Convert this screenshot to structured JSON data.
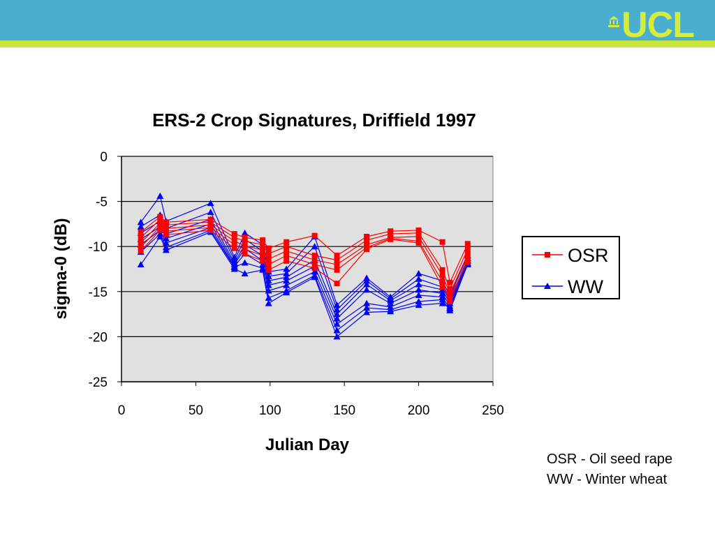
{
  "header": {
    "logo_text": "UCL",
    "colors": {
      "bar": "#4aafcf",
      "stripe": "#c8e63c",
      "logo": "#d4ec3b"
    }
  },
  "notes": [
    "OSR - Oil seed rape",
    "WW - Winter wheat"
  ],
  "chart_data": {
    "type": "line",
    "title": "ERS-2 Crop Signatures, Driffield 1997",
    "xlabel": "Julian Day",
    "ylabel": "sigma-0 (dB)",
    "xlim": [
      0,
      250
    ],
    "ylim": [
      -25,
      0
    ],
    "xticks": [
      0,
      50,
      100,
      150,
      200,
      250
    ],
    "yticks": [
      0,
      -5,
      -10,
      -15,
      -20,
      -25
    ],
    "grid": "horizontal",
    "plot_background": "#e0e0e0",
    "legend_position": "right",
    "x": [
      13,
      26,
      30,
      60,
      76,
      83,
      95,
      99,
      111,
      130,
      145,
      165,
      181,
      200,
      216,
      221,
      233
    ],
    "series": [
      {
        "name": "OSR",
        "color": "#ff0000",
        "marker": "square",
        "lines": [
          [
            -8.4,
            -6.7,
            -7.3,
            -7.0,
            -8.6,
            -9.0,
            -9.3,
            -10.2,
            -9.5,
            -8.8,
            -11.0,
            -8.9,
            -8.3,
            -8.2,
            -9.5,
            -14.0,
            -9.7
          ],
          [
            -9.0,
            -7.0,
            -7.6,
            -7.3,
            -9.0,
            -9.4,
            -9.8,
            -10.8,
            -10.0,
            -11.0,
            -11.5,
            -9.3,
            -8.6,
            -8.5,
            -12.6,
            -14.7,
            -10.3
          ],
          [
            -9.6,
            -7.4,
            -8.0,
            -7.6,
            -9.4,
            -9.9,
            -10.4,
            -11.4,
            -10.5,
            -11.5,
            -12.0,
            -9.8,
            -9.0,
            -8.9,
            -13.2,
            -15.2,
            -10.9
          ],
          [
            -10.1,
            -7.8,
            -8.3,
            -7.9,
            -9.8,
            -10.3,
            -11.0,
            -12.0,
            -11.0,
            -12.0,
            -12.6,
            -10.1,
            -9.1,
            -9.4,
            -13.9,
            -16.1,
            -11.4
          ],
          [
            -10.5,
            -8.2,
            -8.7,
            -8.2,
            -10.2,
            -10.8,
            -11.6,
            -12.6,
            -11.6,
            -12.4,
            -14.1,
            -10.3,
            -9.2,
            -9.6,
            -14.5,
            -15.6,
            -11.7
          ]
        ]
      },
      {
        "name": "WW",
        "color": "#0000ff",
        "marker": "triangle",
        "lines": [
          [
            -7.3,
            -4.4,
            -7.2,
            -5.2,
            -11.2,
            -8.5,
            -9.8,
            -12.8,
            -12.5,
            -8.9,
            -16.5,
            -13.5,
            -15.6,
            -13.0,
            -13.8,
            -15.5,
            -11.0
          ],
          [
            -7.8,
            -6.5,
            -8.0,
            -6.2,
            -11.5,
            -9.2,
            -10.5,
            -13.3,
            -13.0,
            -10.0,
            -17.0,
            -13.8,
            -15.8,
            -13.6,
            -14.5,
            -16.0,
            -11.3
          ],
          [
            -8.5,
            -7.2,
            -8.6,
            -7.0,
            -11.8,
            -9.8,
            -11.0,
            -13.8,
            -13.4,
            -11.5,
            -17.5,
            -14.2,
            -16.0,
            -14.2,
            -14.8,
            -16.3,
            -11.6
          ],
          [
            -9.2,
            -7.8,
            -9.1,
            -7.5,
            -12.0,
            -10.2,
            -11.6,
            -14.3,
            -13.8,
            -12.2,
            -18.0,
            -14.8,
            -16.3,
            -14.8,
            -15.2,
            -16.6,
            -11.8
          ],
          [
            -9.8,
            -8.2,
            -9.6,
            -7.9,
            -12.2,
            -10.8,
            -12.0,
            -14.9,
            -14.3,
            -12.8,
            -18.6,
            -16.3,
            -16.7,
            -15.4,
            -15.6,
            -16.9,
            -12.0
          ],
          [
            -10.6,
            -8.6,
            -10.1,
            -8.2,
            -12.3,
            -11.8,
            -12.4,
            -15.7,
            -14.9,
            -13.2,
            -19.3,
            -16.8,
            -17.0,
            -16.1,
            -15.9,
            -17.1,
            -11.9
          ],
          [
            -12.0,
            -8.9,
            -10.4,
            -8.4,
            -12.5,
            -13.0,
            -12.6,
            -16.3,
            -15.1,
            -13.4,
            -20.0,
            -17.3,
            -17.2,
            -16.5,
            -16.3,
            -16.8,
            -11.5
          ]
        ]
      }
    ]
  }
}
